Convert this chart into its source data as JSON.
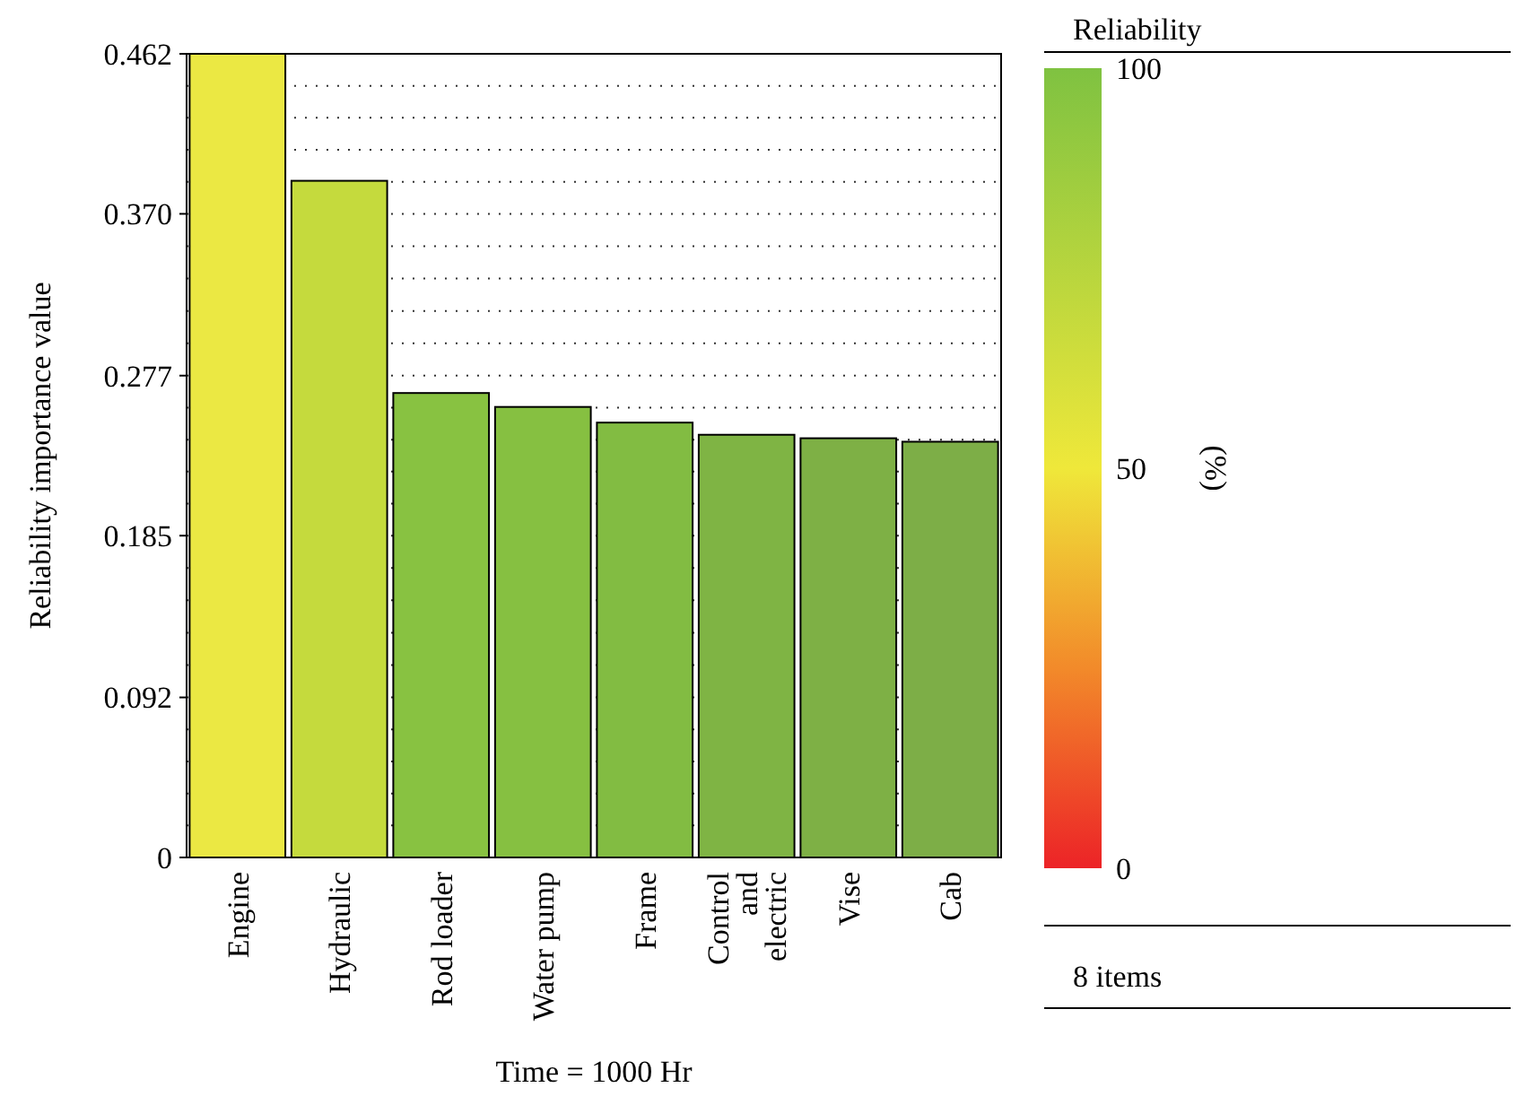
{
  "chart_data": {
    "type": "bar",
    "ylabel": "Reliability importance value",
    "xlabel": "Time = 1000 Hr",
    "categories": [
      "Engine",
      "Hydraulic",
      "Rod loader",
      "Water pump",
      "Frame",
      "Control and electric",
      "Vise",
      "Cab"
    ],
    "values": [
      0.462,
      0.389,
      0.267,
      0.259,
      0.25,
      0.243,
      0.241,
      0.239
    ],
    "colors": [
      "#ebe843",
      "#c5da3d",
      "#88c241",
      "#86c041",
      "#82bc42",
      "#7fb444",
      "#7eb045",
      "#7dae47"
    ],
    "ylim": [
      0,
      0.462
    ],
    "yticks": [
      0,
      0.092,
      0.185,
      0.277,
      {
        "value": 0.37,
        "label": "0.370"
      },
      {
        "value": 0.462,
        "label": "0.462"
      }
    ],
    "grid": "y",
    "line_style": "dotted",
    "legend_title": "Reliability",
    "clabel": "(%)",
    "clim": [
      0,
      100
    ],
    "cticks": [
      0,
      50,
      100
    ],
    "annotations": [
      "8 items"
    ]
  }
}
